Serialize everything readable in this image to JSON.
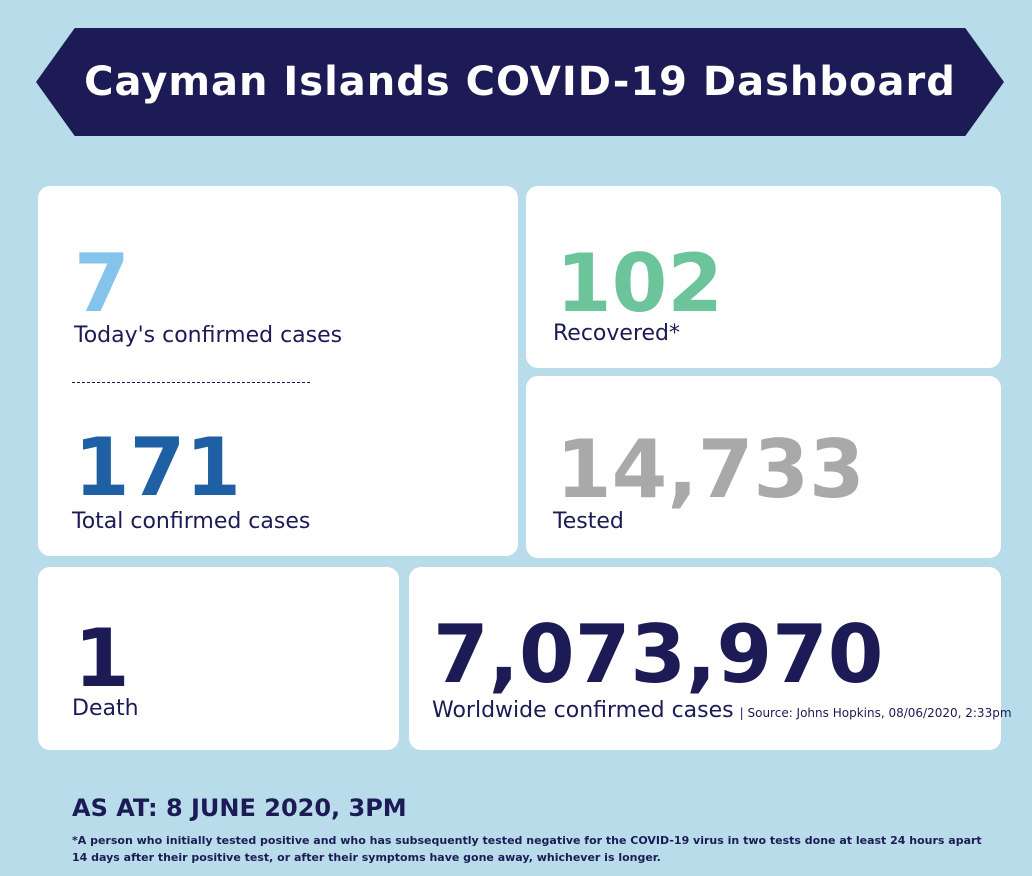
{
  "header": {
    "title": "Cayman Islands COVID-19 Dashboard"
  },
  "today": {
    "value": "7",
    "label": "Today's confirmed cases"
  },
  "total": {
    "value": "171",
    "label": "Total confirmed cases"
  },
  "recovered": {
    "value": "102",
    "label": "Recovered*"
  },
  "tested": {
    "value": "14,733",
    "label": "Tested"
  },
  "death": {
    "value": "1",
    "label": "Death"
  },
  "worldwide": {
    "value": "7,073,970",
    "label": "Worldwide confirmed cases",
    "source": "| Source: Johns Hopkins, 08/06/2020, 2:33pm"
  },
  "footer": {
    "as_at": "AS AT: 8 JUNE 2020, 3PM",
    "footnote": "*A person who initially tested positive and who has subsequently tested negative for the COVID-19 virus in two tests done at least 24 hours apart 14 days after their positive test, or after their symptoms have gone away, whichever is longer."
  },
  "colors": {
    "background": "#b9dcea",
    "navy": "#1c1b55",
    "today_blue": "#84c4ec",
    "total_blue": "#1f5fa3",
    "recovered_green": "#6cc49a",
    "tested_gray": "#a9a9a9"
  }
}
